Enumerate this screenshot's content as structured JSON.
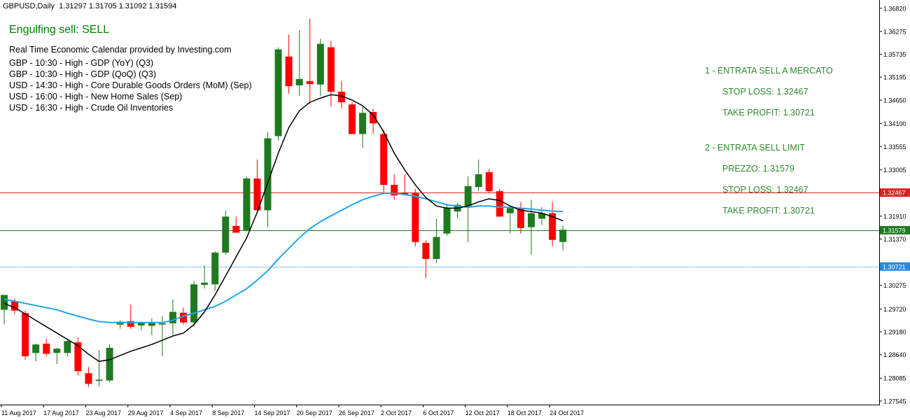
{
  "header": {
    "symbol": "GBPUSD,Daily",
    "ohlc": "1.31297 1.31705 1.31092 1.31594"
  },
  "signal": "Engulfing sell: SELL",
  "calendar": {
    "title": "Real Time Economic Calendar provided by Investing.com",
    "events": [
      "GBP - 10:30 - High - GDP (YoY) (Q3)",
      "GBP - 10:30 - High - GDP (QoQ) (Q3)",
      "USD - 14:30 - High - Core Durable Goods Orders (MoM) (Sep)",
      "USD - 16:00 - High - New Home Sales (Sep)",
      "USD - 16:30 - High - Crude Oil Inventories"
    ]
  },
  "trade_panel": {
    "entry1_title": "1 - ENTRATA SELL A MERCATO",
    "entry1_stop": "STOP LOSS: 1.32467",
    "entry1_take": "TAKE PROFIT: 1.30721",
    "entry2_title": "2 - ENTRATA SELL LIMIT",
    "entry2_price": "PREZZO: 1.31579",
    "entry2_stop": "STOP LOSS: 1.32467",
    "entry2_take": "TAKE PROFIT: 1.30721"
  },
  "colors": {
    "bull": "#1f7a1f",
    "bear": "#ff0000",
    "ma_fast": "#000000",
    "ma_slow": "#1fa8e8",
    "stop_line": "#e02020",
    "entry_line": "#1f7a1f",
    "target_line": "#2a8ae0"
  },
  "chart_data": {
    "type": "candlestick",
    "y_ticks": [
      "1.36820",
      "1.36275",
      "1.35735",
      "1.35195",
      "1.34650",
      "1.34100",
      "1.33555",
      "1.33005",
      "1.32467",
      "1.31910",
      "1.31579",
      "1.31370",
      "1.30721",
      "1.30275",
      "1.29720",
      "1.29180",
      "1.28640",
      "1.28085",
      "1.27545"
    ],
    "ylim": [
      1.2746,
      1.3695
    ],
    "x_labels": [
      "11 Aug 2017",
      "17 Aug 2017",
      "23 Aug 2017",
      "29 Aug 2017",
      "4 Sep 2017",
      "8 Sep 2017",
      "14 Sep 2017",
      "20 Sep 2017",
      "26 Sep 2017",
      "2 Oct 2017",
      "6 Oct 2017",
      "12 Oct 2017",
      "18 Oct 2017",
      "24 Oct 2017"
    ],
    "x_label_index": [
      0,
      4,
      8,
      12,
      16,
      20,
      24,
      28,
      32,
      36,
      40,
      44,
      48,
      52
    ],
    "candles": [
      {
        "o": 1.297,
        "h": 1.3005,
        "l": 1.2935,
        "c": 1.3005
      },
      {
        "o": 1.299,
        "h": 1.2996,
        "l": 1.296,
        "c": 1.2968
      },
      {
        "o": 1.2962,
        "h": 1.2968,
        "l": 1.2852,
        "c": 1.286
      },
      {
        "o": 1.2868,
        "h": 1.289,
        "l": 1.2848,
        "c": 1.2888
      },
      {
        "o": 1.289,
        "h": 1.2902,
        "l": 1.286,
        "c": 1.2866
      },
      {
        "o": 1.2868,
        "h": 1.288,
        "l": 1.2842,
        "c": 1.2878
      },
      {
        "o": 1.2868,
        "h": 1.29,
        "l": 1.286,
        "c": 1.2896
      },
      {
        "o": 1.2893,
        "h": 1.2905,
        "l": 1.2815,
        "c": 1.2825
      },
      {
        "o": 1.282,
        "h": 1.2835,
        "l": 1.2788,
        "c": 1.2795
      },
      {
        "o": 1.2802,
        "h": 1.2875,
        "l": 1.2788,
        "c": 1.2805
      },
      {
        "o": 1.2803,
        "h": 1.2889,
        "l": 1.2798,
        "c": 1.288
      },
      {
        "o": 1.2935,
        "h": 1.2945,
        "l": 1.2925,
        "c": 1.2942
      },
      {
        "o": 1.2943,
        "h": 1.2982,
        "l": 1.2925,
        "c": 1.293
      },
      {
        "o": 1.2933,
        "h": 1.2942,
        "l": 1.2922,
        "c": 1.294
      },
      {
        "o": 1.2932,
        "h": 1.295,
        "l": 1.291,
        "c": 1.294
      },
      {
        "o": 1.2935,
        "h": 1.2955,
        "l": 1.286,
        "c": 1.2938
      },
      {
        "o": 1.2938,
        "h": 1.2995,
        "l": 1.291,
        "c": 1.2965
      },
      {
        "o": 1.2963,
        "h": 1.2975,
        "l": 1.2935,
        "c": 1.294
      },
      {
        "o": 1.294,
        "h": 1.3038,
        "l": 1.293,
        "c": 1.303
      },
      {
        "o": 1.3029,
        "h": 1.3075,
        "l": 1.302,
        "c": 1.3034
      },
      {
        "o": 1.303,
        "h": 1.3108,
        "l": 1.3015,
        "c": 1.3105
      },
      {
        "o": 1.3105,
        "h": 1.3205,
        "l": 1.31,
        "c": 1.319
      },
      {
        "o": 1.3168,
        "h": 1.319,
        "l": 1.3155,
        "c": 1.3152
      },
      {
        "o": 1.3158,
        "h": 1.3285,
        "l": 1.3155,
        "c": 1.328
      },
      {
        "o": 1.328,
        "h": 1.3325,
        "l": 1.32,
        "c": 1.3205
      },
      {
        "o": 1.3205,
        "h": 1.339,
        "l": 1.3165,
        "c": 1.3375
      },
      {
        "o": 1.338,
        "h": 1.359,
        "l": 1.337,
        "c": 1.3585
      },
      {
        "o": 1.3568,
        "h": 1.362,
        "l": 1.348,
        "c": 1.3498
      },
      {
        "o": 1.35,
        "h": 1.363,
        "l": 1.3475,
        "c": 1.3515
      },
      {
        "o": 1.351,
        "h": 1.3658,
        "l": 1.3455,
        "c": 1.3503
      },
      {
        "o": 1.3502,
        "h": 1.361,
        "l": 1.3475,
        "c": 1.3598
      },
      {
        "o": 1.359,
        "h": 1.3605,
        "l": 1.345,
        "c": 1.3485
      },
      {
        "o": 1.3485,
        "h": 1.351,
        "l": 1.3445,
        "c": 1.346
      },
      {
        "o": 1.3455,
        "h": 1.346,
        "l": 1.3385,
        "c": 1.3385
      },
      {
        "o": 1.3385,
        "h": 1.345,
        "l": 1.3352,
        "c": 1.3435
      },
      {
        "o": 1.3437,
        "h": 1.3445,
        "l": 1.3385,
        "c": 1.341
      },
      {
        "o": 1.3385,
        "h": 1.3395,
        "l": 1.3245,
        "c": 1.3265
      },
      {
        "o": 1.3265,
        "h": 1.329,
        "l": 1.323,
        "c": 1.324
      },
      {
        "o": 1.3247,
        "h": 1.329,
        "l": 1.324,
        "c": 1.3243
      },
      {
        "o": 1.3245,
        "h": 1.3255,
        "l": 1.312,
        "c": 1.313
      },
      {
        "o": 1.3128,
        "h": 1.3135,
        "l": 1.3045,
        "c": 1.309
      },
      {
        "o": 1.309,
        "h": 1.3185,
        "l": 1.308,
        "c": 1.3142
      },
      {
        "o": 1.315,
        "h": 1.322,
        "l": 1.3145,
        "c": 1.321
      },
      {
        "o": 1.3202,
        "h": 1.3222,
        "l": 1.3185,
        "c": 1.3218
      },
      {
        "o": 1.3215,
        "h": 1.3285,
        "l": 1.313,
        "c": 1.3262
      },
      {
        "o": 1.326,
        "h": 1.3325,
        "l": 1.325,
        "c": 1.329
      },
      {
        "o": 1.3295,
        "h": 1.3302,
        "l": 1.3245,
        "c": 1.325
      },
      {
        "o": 1.325,
        "h": 1.3255,
        "l": 1.3195,
        "c": 1.319
      },
      {
        "o": 1.3198,
        "h": 1.321,
        "l": 1.315,
        "c": 1.321
      },
      {
        "o": 1.321,
        "h": 1.3225,
        "l": 1.315,
        "c": 1.3163
      },
      {
        "o": 1.3165,
        "h": 1.323,
        "l": 1.31,
        "c": 1.3198
      },
      {
        "o": 1.3185,
        "h": 1.3212,
        "l": 1.317,
        "c": 1.3198
      },
      {
        "o": 1.3198,
        "h": 1.3225,
        "l": 1.312,
        "c": 1.3135
      },
      {
        "o": 1.313,
        "h": 1.317,
        "l": 1.311,
        "c": 1.3159
      }
    ],
    "ma_fast": [
      1.2985,
      1.2975,
      1.296,
      1.2945,
      1.293,
      1.2915,
      1.29,
      1.2885,
      1.2865,
      1.2848,
      1.2852,
      1.2862,
      1.2872,
      1.288,
      1.2888,
      1.2898,
      1.2908,
      1.2915,
      1.2935,
      1.2965,
      1.3005,
      1.305,
      1.3095,
      1.314,
      1.32,
      1.327,
      1.334,
      1.34,
      1.344,
      1.346,
      1.347,
      1.3478,
      1.3475,
      1.3465,
      1.3452,
      1.343,
      1.339,
      1.334,
      1.33,
      1.3265,
      1.3235,
      1.3215,
      1.321,
      1.321,
      1.3215,
      1.3225,
      1.3232,
      1.3228,
      1.3215,
      1.3205,
      1.3202,
      1.3198,
      1.319,
      1.318
    ],
    "ma_slow": [
      1.2995,
      1.299,
      1.2985,
      1.298,
      1.2975,
      1.297,
      1.2962,
      1.2955,
      1.2948,
      1.2942,
      1.294,
      1.294,
      1.294,
      1.294,
      1.294,
      1.294,
      1.2945,
      1.2955,
      1.2962,
      1.297,
      1.2978,
      1.299,
      1.3005,
      1.302,
      1.304,
      1.3062,
      1.309,
      1.3115,
      1.314,
      1.3162,
      1.3178,
      1.3192,
      1.3205,
      1.3218,
      1.323,
      1.3238,
      1.3245,
      1.3245,
      1.3242,
      1.3238,
      1.3232,
      1.3225,
      1.3218,
      1.3215,
      1.3212,
      1.3215,
      1.3215,
      1.3212,
      1.3212,
      1.321,
      1.3208,
      1.3205,
      1.3203,
      1.3202
    ],
    "levels": [
      {
        "name": "stop",
        "value": 1.32467,
        "label": "1.32467"
      },
      {
        "name": "entry",
        "value": 1.31579,
        "label": "1.31579"
      },
      {
        "name": "target",
        "value": 1.30721,
        "label": "1.30721"
      }
    ]
  }
}
